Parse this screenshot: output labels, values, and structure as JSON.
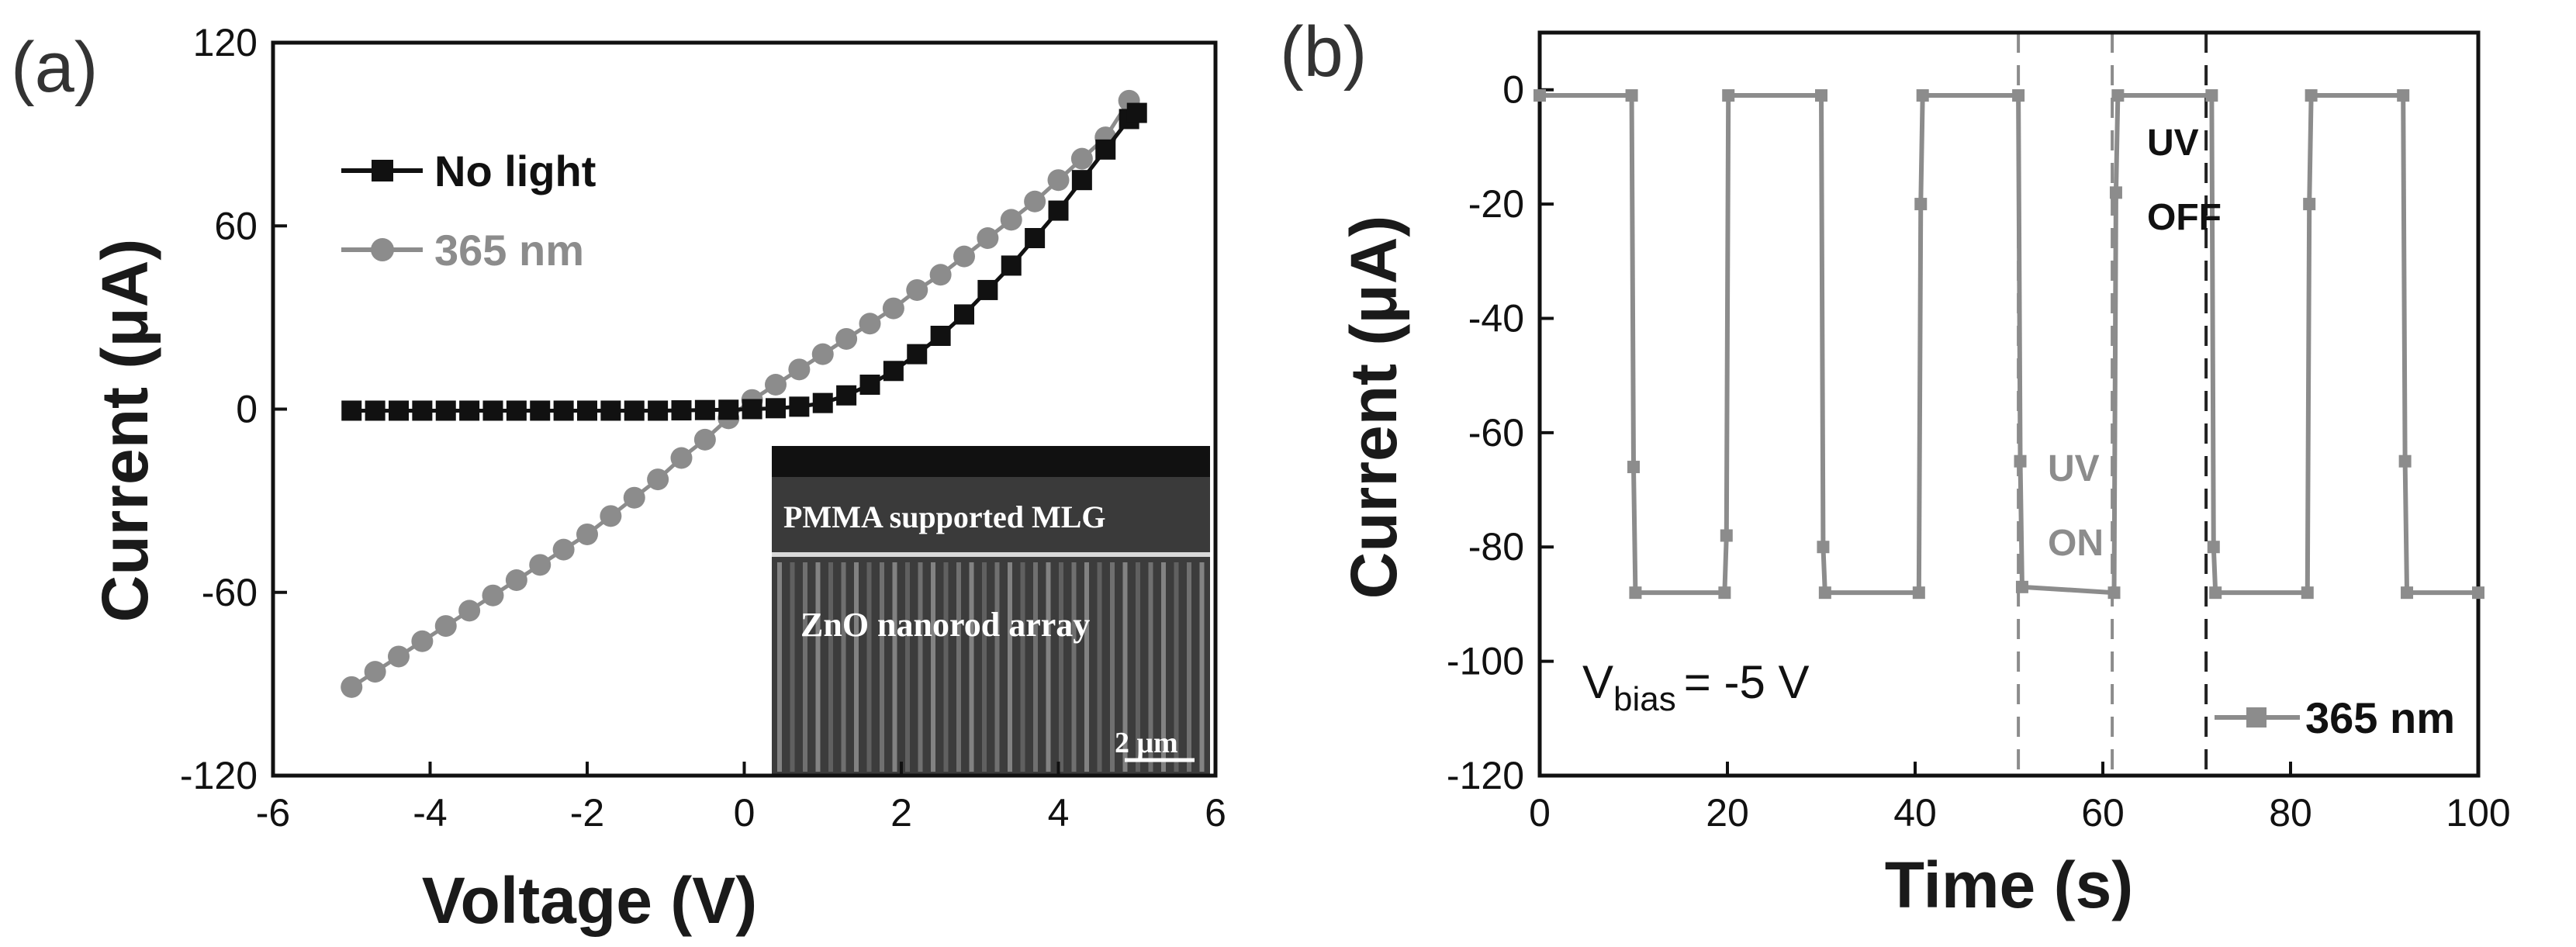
{
  "colors": {
    "no_light": "#111111",
    "uv": "#8c8c8c",
    "axis": "#111111",
    "inset_bg": "#3a3a3a"
  },
  "chart_data": [
    {
      "panel": "(a)",
      "type": "line",
      "xlabel": "Voltage (V)",
      "ylabel": "Current (μA)",
      "xlim": [
        -6,
        6
      ],
      "ylim": [
        -120,
        120
      ],
      "xticks": [
        -6,
        -4,
        -2,
        0,
        2,
        4,
        6
      ],
      "yticks": [
        -120,
        -60,
        0,
        60,
        120
      ],
      "xtick_labels": [
        "-6",
        "-4",
        "-2",
        "0",
        "2",
        "4",
        "6"
      ],
      "ytick_labels": [
        "-120",
        "-60",
        "0",
        "60",
        "120"
      ],
      "legend_position": "top-left",
      "series": [
        {
          "name": "No light",
          "marker": "square",
          "x": [
            -5.0,
            -4.7,
            -4.4,
            -4.1,
            -3.8,
            -3.5,
            -3.2,
            -2.9,
            -2.6,
            -2.3,
            -2.0,
            -1.7,
            -1.4,
            -1.1,
            -0.8,
            -0.5,
            -0.2,
            0.1,
            0.4,
            0.7,
            1.0,
            1.3,
            1.6,
            1.9,
            2.2,
            2.5,
            2.8,
            3.1,
            3.4,
            3.7,
            4.0,
            4.3,
            4.6,
            4.9,
            5.0
          ],
          "values": [
            -0.5,
            -0.5,
            -0.5,
            -0.5,
            -0.5,
            -0.5,
            -0.5,
            -0.5,
            -0.5,
            -0.5,
            -0.5,
            -0.5,
            -0.5,
            -0.5,
            -0.4,
            -0.3,
            -0.2,
            0,
            0.3,
            0.8,
            2,
            4.5,
            8,
            12.5,
            18,
            24,
            31,
            39,
            47,
            56,
            65,
            75,
            85,
            95,
            97
          ]
        },
        {
          "name": "365 nm",
          "marker": "circle",
          "x": [
            -5.0,
            -4.7,
            -4.4,
            -4.1,
            -3.8,
            -3.5,
            -3.2,
            -2.9,
            -2.6,
            -2.3,
            -2.0,
            -1.7,
            -1.4,
            -1.1,
            -0.8,
            -0.5,
            -0.2,
            0.1,
            0.4,
            0.7,
            1.0,
            1.3,
            1.6,
            1.9,
            2.2,
            2.5,
            2.8,
            3.1,
            3.4,
            3.7,
            4.0,
            4.3,
            4.6,
            4.9
          ],
          "values": [
            -91,
            -86,
            -81,
            -76,
            -71,
            -66,
            -61,
            -56,
            -51,
            -46,
            -41,
            -35,
            -29,
            -23,
            -16,
            -10,
            -3,
            3,
            8,
            13,
            18,
            23,
            28,
            33,
            39,
            44,
            50,
            56,
            62,
            68,
            75,
            82,
            89,
            101
          ]
        }
      ],
      "inset": {
        "top_label": "PMMA supported MLG",
        "middle_label": "ZnO nanorod array",
        "scale_label": "2 μm"
      }
    },
    {
      "panel": "(b)",
      "type": "line",
      "xlabel": "Time (s)",
      "ylabel": "Current (μA)",
      "xlim": [
        0,
        100
      ],
      "ylim": [
        -120,
        10
      ],
      "xticks": [
        0,
        20,
        40,
        60,
        80,
        100
      ],
      "yticks": [
        0,
        -20,
        -40,
        -60,
        -80,
        -100,
        -120
      ],
      "xtick_labels": [
        "0",
        "20",
        "40",
        "60",
        "80",
        "100"
      ],
      "ytick_labels": [
        "0",
        "-20",
        "-40",
        "-60",
        "-80",
        "-100",
        "-120"
      ],
      "legend_position": "bottom-right",
      "series": [
        {
          "name": "365 nm",
          "marker": "square",
          "x": [
            0,
            9.8,
            10,
            10.2,
            19.7,
            19.9,
            20.1,
            30,
            30.2,
            30.4,
            40.4,
            40.6,
            40.8,
            51,
            51.2,
            51.4,
            61.2,
            61.4,
            61.6,
            71.6,
            71.8,
            72,
            81.8,
            82,
            82.2,
            92,
            92.2,
            92.4,
            100
          ],
          "values": [
            -1,
            -1,
            -66,
            -88,
            -88,
            -78,
            -1,
            -1,
            -80,
            -88,
            -88,
            -20,
            -1,
            -1,
            -65,
            -87,
            -88,
            -18,
            -1,
            -1,
            -80,
            -88,
            -88,
            -20,
            -1,
            -1,
            -65,
            -88,
            -88
          ]
        }
      ],
      "bias_annotation": "= -5 V",
      "bias_symbol": "V",
      "bias_subscript": "bias",
      "vlines_dashed": [
        51,
        61
      ],
      "vline_dashed_dark": 71,
      "annot_uv_on": [
        "UV",
        "ON"
      ],
      "annot_uv_off": [
        "UV",
        "OFF"
      ]
    }
  ]
}
